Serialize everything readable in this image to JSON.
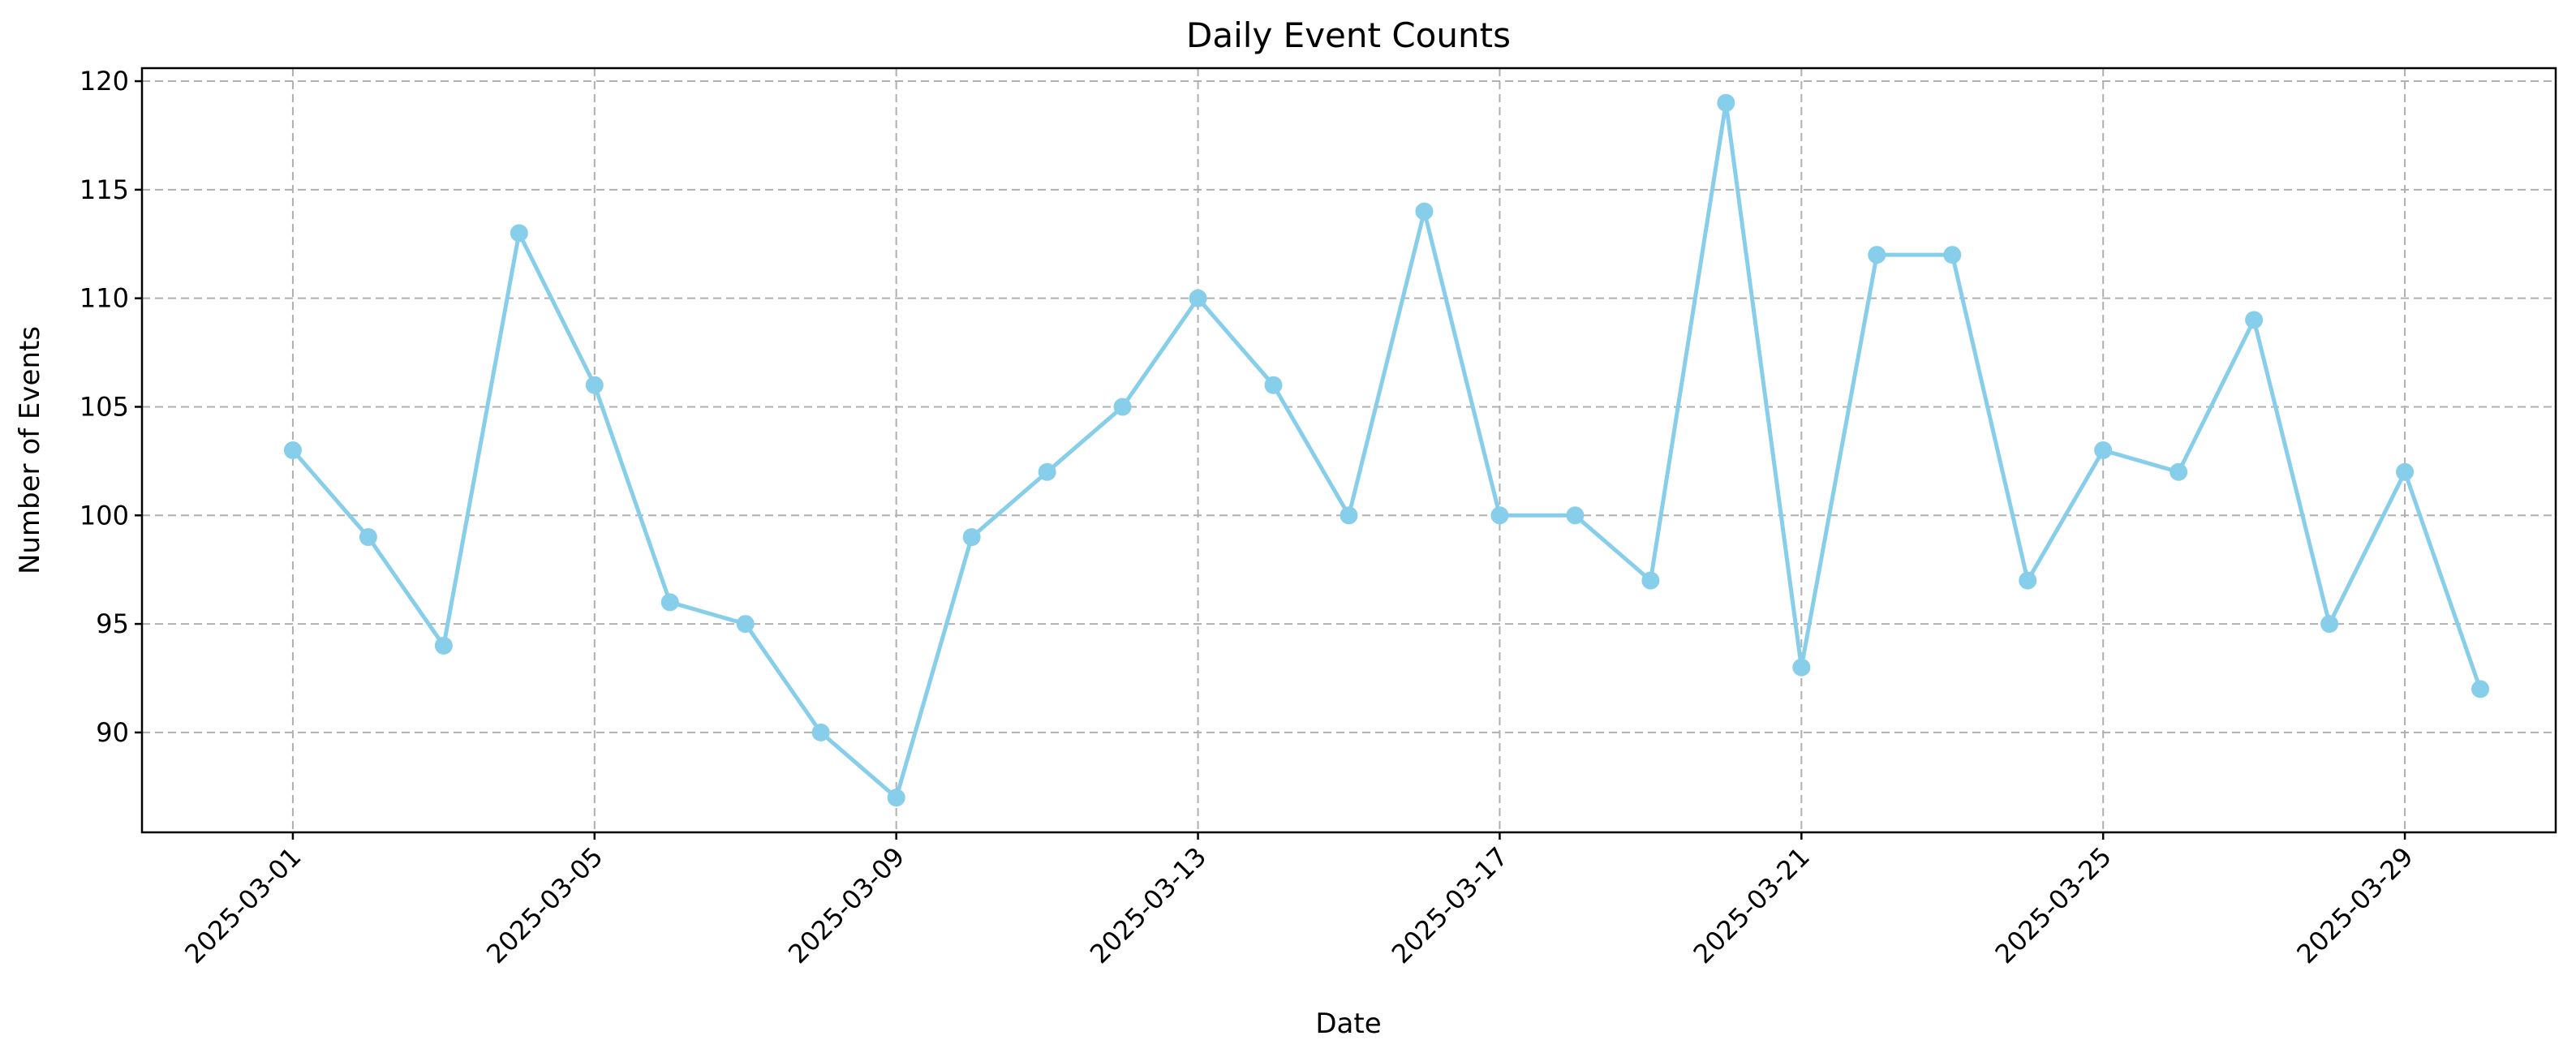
{
  "chart_data": {
    "type": "line",
    "title": "Daily Event Counts",
    "xlabel": "Date",
    "ylabel": "Number of Events",
    "x": [
      "2025-03-01",
      "2025-03-02",
      "2025-03-03",
      "2025-03-04",
      "2025-03-05",
      "2025-03-06",
      "2025-03-07",
      "2025-03-08",
      "2025-03-09",
      "2025-03-10",
      "2025-03-11",
      "2025-03-12",
      "2025-03-13",
      "2025-03-14",
      "2025-03-15",
      "2025-03-16",
      "2025-03-17",
      "2025-03-18",
      "2025-03-19",
      "2025-03-20",
      "2025-03-21",
      "2025-03-22",
      "2025-03-23",
      "2025-03-24",
      "2025-03-25",
      "2025-03-26",
      "2025-03-27",
      "2025-03-28",
      "2025-03-29",
      "2025-03-30"
    ],
    "series": [
      {
        "values": [
          103,
          99,
          94,
          113,
          106,
          96,
          95,
          90,
          87,
          99,
          102,
          105,
          110,
          106,
          100,
          114,
          100,
          100,
          97,
          119,
          93,
          112,
          112,
          97,
          103,
          102,
          109,
          95,
          102,
          92
        ]
      }
    ],
    "x_ticks": [
      "2025-03-01",
      "2025-03-05",
      "2025-03-09",
      "2025-03-13",
      "2025-03-17",
      "2025-03-21",
      "2025-03-25",
      "2025-03-29"
    ],
    "y_ticks": [
      90,
      95,
      100,
      105,
      110,
      115,
      120
    ],
    "xlim": [
      "2025-02-27",
      "2025-03-31"
    ],
    "ylim": [
      85.4,
      120.6
    ],
    "grid": true,
    "marker": "circle",
    "color": "#87ceeb"
  }
}
